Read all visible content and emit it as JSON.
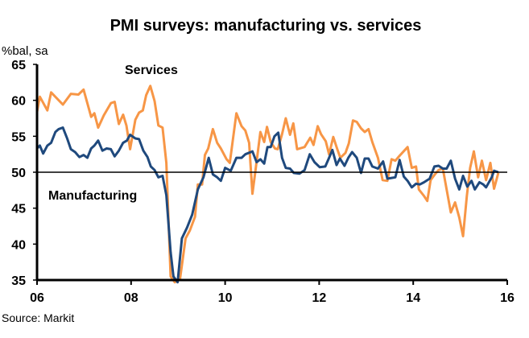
{
  "chart_data": {
    "type": "line",
    "title": "PMI surveys: manufacturing vs. services",
    "ylabel": "%bal, sa",
    "xlabel": "",
    "source": "Source: Markit",
    "ylim": [
      35,
      65
    ],
    "xlim": [
      2006,
      2016
    ],
    "yticks": [
      35,
      40,
      45,
      50,
      55,
      60,
      65
    ],
    "xticks": [
      {
        "value": 2006,
        "label": "06"
      },
      {
        "value": 2008,
        "label": "08"
      },
      {
        "value": 2010,
        "label": "10"
      },
      {
        "value": 2012,
        "label": "12"
      },
      {
        "value": 2014,
        "label": "14"
      },
      {
        "value": 2016,
        "label": "16"
      }
    ],
    "reference_line": 50,
    "grid": false,
    "annotations": [
      "Services",
      "Manufacturing"
    ],
    "series": [
      {
        "name": "Services",
        "color": "#f79646",
        "x": [
          2006.0,
          2006.06,
          2006.22,
          2006.3,
          2006.55,
          2006.72,
          2006.88,
          2006.99,
          2007.15,
          2007.22,
          2007.3,
          2007.42,
          2007.57,
          2007.65,
          2007.74,
          2007.83,
          2007.9,
          2007.98,
          2008.09,
          2008.17,
          2008.25,
          2008.32,
          2008.41,
          2008.5,
          2008.58,
          2008.67,
          2008.75,
          2008.84,
          2008.93,
          2009.04,
          2009.16,
          2009.25,
          2009.36,
          2009.42,
          2009.51,
          2009.57,
          2009.64,
          2009.74,
          2009.83,
          2009.91,
          2010.03,
          2010.1,
          2010.24,
          2010.35,
          2010.43,
          2010.51,
          2010.58,
          2010.65,
          2010.75,
          2010.83,
          2010.89,
          2010.97,
          2011.06,
          2011.12,
          2011.21,
          2011.29,
          2011.38,
          2011.45,
          2011.53,
          2011.69,
          2011.81,
          2011.88,
          2011.97,
          2012.04,
          2012.14,
          2012.21,
          2012.3,
          2012.39,
          2012.45,
          2012.56,
          2012.63,
          2012.72,
          2012.8,
          2012.89,
          2012.97,
          2013.05,
          2013.13,
          2013.25,
          2013.35,
          2013.45,
          2013.54,
          2013.62,
          2013.71,
          2013.81,
          2013.88,
          2013.97,
          2014.06,
          2014.12,
          2014.23,
          2014.3,
          2014.37,
          2014.46,
          2014.54,
          2014.63,
          2014.71,
          2014.8,
          2014.89,
          2014.98,
          2015.06,
          2015.14,
          2015.21,
          2015.29,
          2015.38,
          2015.46,
          2015.55,
          2015.64,
          2015.72,
          2015.81
        ],
        "values": [
          58.4,
          60.5,
          58.6,
          61.1,
          59.4,
          60.9,
          60.8,
          61.5,
          57.7,
          58.2,
          56.2,
          57.9,
          59.6,
          59.8,
          56.7,
          58.0,
          56.5,
          53.2,
          57.3,
          58.3,
          58.6,
          60.7,
          62.0,
          59.9,
          56.5,
          56.2,
          51.3,
          35.5,
          34.7,
          35.1,
          40.8,
          41.9,
          43.8,
          48.3,
          48.3,
          52.4,
          53.3,
          56.0,
          54.1,
          53.3,
          51.8,
          51.3,
          58.2,
          56.4,
          55.8,
          54.1,
          47.0,
          50.5,
          55.6,
          54.2,
          56.3,
          54.2,
          53.3,
          53.2,
          55.3,
          57.5,
          55.2,
          56.8,
          53.2,
          53.5,
          54.8,
          53.8,
          56.4,
          55.3,
          54.3,
          52.5,
          54.9,
          53.1,
          52.0,
          52.7,
          54.0,
          57.2,
          57.0,
          56.1,
          55.6,
          56.0,
          54.2,
          52.0,
          48.9,
          48.8,
          51.8,
          51.6,
          52.3,
          53.0,
          53.5,
          50.6,
          50.8,
          47.6,
          46.7,
          46.0,
          48.9,
          49.7,
          50.3,
          50.5,
          47.6,
          44.4,
          45.8,
          43.7,
          41.1,
          46.7,
          50.6,
          52.9,
          49.3,
          51.6,
          48.9,
          51.3,
          47.7,
          49.9
        ]
      },
      {
        "name": "Manufacturing",
        "color": "#1f497d",
        "x": [
          2006.0,
          2006.06,
          2006.13,
          2006.22,
          2006.3,
          2006.39,
          2006.46,
          2006.55,
          2006.64,
          2006.72,
          2006.81,
          2006.9,
          2006.99,
          2007.07,
          2007.15,
          2007.22,
          2007.3,
          2007.39,
          2007.48,
          2007.57,
          2007.65,
          2007.74,
          2007.83,
          2007.91,
          2007.98,
          2008.09,
          2008.17,
          2008.26,
          2008.35,
          2008.42,
          2008.5,
          2008.58,
          2008.67,
          2008.75,
          2008.84,
          2008.9,
          2008.99,
          2009.08,
          2009.19,
          2009.3,
          2009.42,
          2009.54,
          2009.65,
          2009.74,
          2009.83,
          2009.91,
          2010.0,
          2010.12,
          2010.24,
          2010.35,
          2010.43,
          2010.58,
          2010.67,
          2010.75,
          2010.83,
          2010.9,
          2010.97,
          2011.05,
          2011.13,
          2011.21,
          2011.29,
          2011.38,
          2011.46,
          2011.58,
          2011.69,
          2011.8,
          2011.9,
          2012.01,
          2012.13,
          2012.21,
          2012.28,
          2012.37,
          2012.44,
          2012.54,
          2012.62,
          2012.7,
          2012.8,
          2012.89,
          2012.97,
          2013.05,
          2013.13,
          2013.25,
          2013.36,
          2013.45,
          2013.54,
          2013.62,
          2013.71,
          2013.8,
          2013.88,
          2013.97,
          2014.06,
          2014.14,
          2014.23,
          2014.35,
          2014.45,
          2014.54,
          2014.63,
          2014.71,
          2014.8,
          2014.89,
          2014.98,
          2015.06,
          2015.15,
          2015.24,
          2015.31,
          2015.41,
          2015.49,
          2015.55,
          2015.67,
          2015.72,
          2015.81
        ],
        "values": [
          53.3,
          53.7,
          52.6,
          53.7,
          54.1,
          55.6,
          56.0,
          56.2,
          54.7,
          53.2,
          52.8,
          52.1,
          52.4,
          52.0,
          53.3,
          53.7,
          54.4,
          53.0,
          53.3,
          53.2,
          52.2,
          53.0,
          54.1,
          54.4,
          55.2,
          54.7,
          54.6,
          53.0,
          52.1,
          50.8,
          50.3,
          49.3,
          49.5,
          46.8,
          38.9,
          35.5,
          34.7,
          40.8,
          42.3,
          44.1,
          47.6,
          49.3,
          52.0,
          49.7,
          49.3,
          48.8,
          50.6,
          50.2,
          52.0,
          52.0,
          52.5,
          52.9,
          51.4,
          51.8,
          51.2,
          53.5,
          53.5,
          55.0,
          55.5,
          52.0,
          50.6,
          50.5,
          49.9,
          49.8,
          50.3,
          52.5,
          51.4,
          50.7,
          50.8,
          52.0,
          53.1,
          51.0,
          51.9,
          50.9,
          52.0,
          52.8,
          52.0,
          49.9,
          51.9,
          51.9,
          50.8,
          50.5,
          51.5,
          49.1,
          49.2,
          49.3,
          51.7,
          49.4,
          48.8,
          47.9,
          48.4,
          48.3,
          48.6,
          49.1,
          50.8,
          50.9,
          50.5,
          50.5,
          51.6,
          49.1,
          47.6,
          49.5,
          48.0,
          48.8,
          47.6,
          48.6,
          48.3,
          47.9,
          49.3,
          50.2,
          50.0
        ]
      }
    ]
  }
}
